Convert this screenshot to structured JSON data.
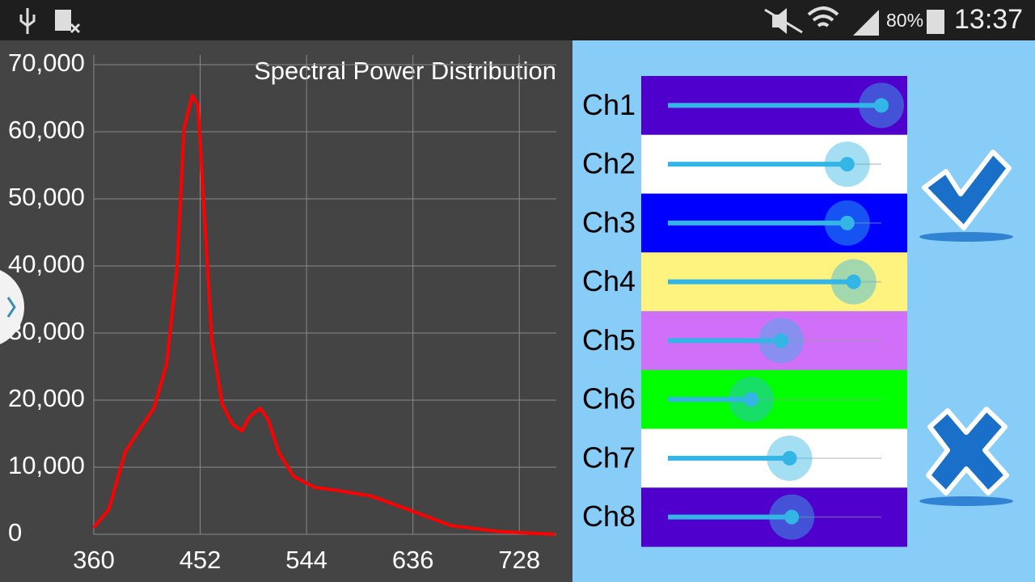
{
  "status_bar": {
    "battery": "80%",
    "time": "13:37"
  },
  "chart_data": {
    "type": "line",
    "title": "Spectral Power Distribution",
    "x": [
      360,
      373,
      387,
      398,
      412,
      423,
      432,
      438,
      445,
      450,
      455,
      462,
      471,
      480,
      488,
      495,
      504,
      511,
      520,
      533,
      551,
      572,
      600,
      635,
      669,
      711,
      759
    ],
    "series": [
      {
        "color": "#ff0000",
        "values": [
          1000,
          3700,
          12200,
          15200,
          18800,
          25400,
          39900,
          60400,
          65400,
          64000,
          49500,
          29000,
          19400,
          16400,
          15400,
          17600,
          18800,
          17000,
          12200,
          8600,
          7000,
          6500,
          5700,
          3500,
          1300,
          400,
          0
        ]
      }
    ],
    "xlim": [
      360,
      760
    ],
    "ylim": [
      0,
      70000
    ],
    "xticks": [
      360,
      452,
      544,
      636,
      728
    ],
    "yticks": [
      0,
      {
        "value": 10000,
        "label": "10,000"
      },
      {
        "value": 20000,
        "label": "20,000"
      },
      {
        "value": 30000,
        "label": "30,000"
      },
      {
        "value": 40000,
        "label": "40,000"
      },
      {
        "value": 50000,
        "label": "50,000"
      },
      {
        "value": 60000,
        "label": "60,000"
      },
      {
        "value": 70000,
        "label": "70,000"
      }
    ],
    "grid": true
  },
  "sliders": {
    "lim": [
      0,
      100
    ],
    "channels": [
      {
        "label": "Ch1",
        "color": "#5000cc",
        "value": 100
      },
      {
        "label": "Ch2",
        "color": "#ffffff",
        "value": 84
      },
      {
        "label": "Ch3",
        "color": "#0000ff",
        "value": 84
      },
      {
        "label": "Ch4",
        "color": "#fff380",
        "value": 87
      },
      {
        "label": "Ch5",
        "color": "#d070f8",
        "value": 53
      },
      {
        "label": "Ch6",
        "color": "#00ff00",
        "value": 39
      },
      {
        "label": "Ch7",
        "color": "#ffffff",
        "value": 57
      },
      {
        "label": "Ch8",
        "color": "#5000cc",
        "value": 58
      }
    ]
  }
}
